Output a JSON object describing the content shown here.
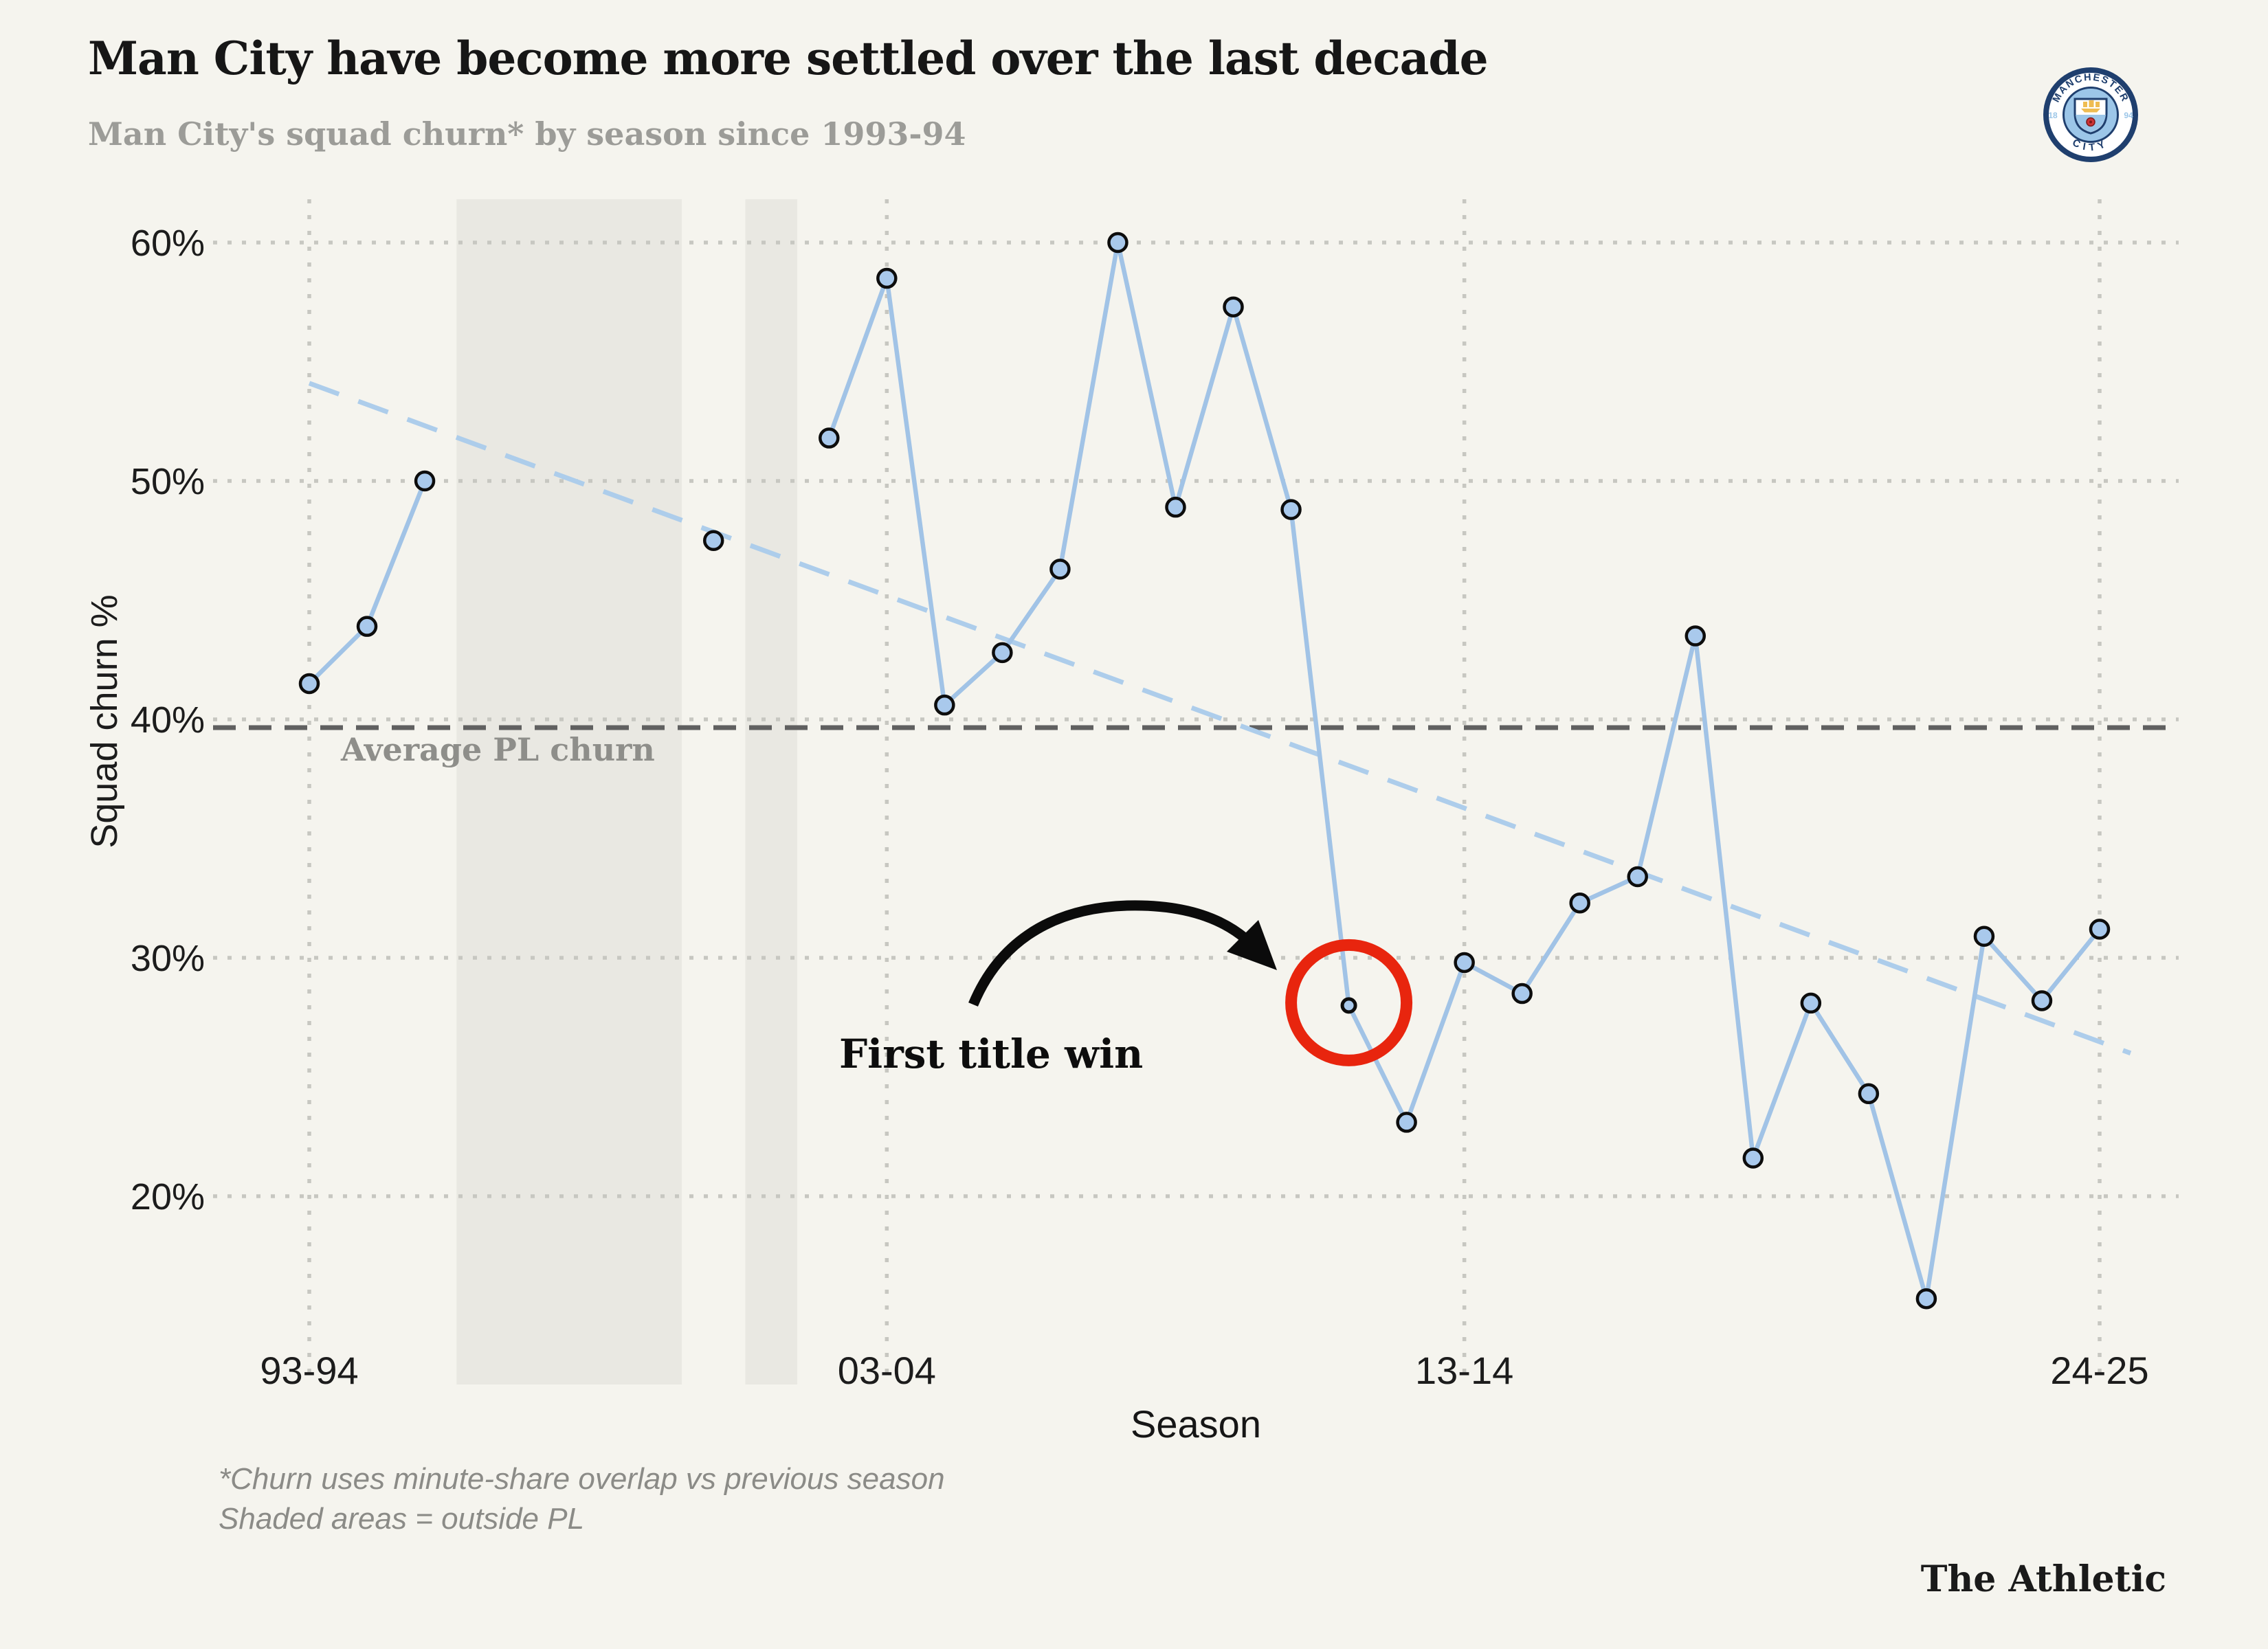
{
  "header": {
    "title": "Man City have become more settled over the last decade",
    "subtitle": "Man City's squad churn* by season since 1993-94"
  },
  "badge": {
    "name": "Manchester City crest",
    "top_text": "MANCHESTER",
    "bottom_text": "CITY",
    "left_text": "18",
    "right_text": "94"
  },
  "chart_data": {
    "type": "line",
    "xlabel": "Season",
    "ylabel": "Squad churn %",
    "ylim": [
      13,
      62
    ],
    "grid": "dotted",
    "legend": "none",
    "seasons": [
      "93-94",
      "94-95",
      "95-96",
      "96-97",
      "97-98",
      "98-99",
      "99-00",
      "00-01",
      "01-02",
      "02-03",
      "03-04",
      "04-05",
      "05-06",
      "06-07",
      "07-08",
      "08-09",
      "09-10",
      "10-11",
      "11-12",
      "12-13",
      "13-14",
      "14-15",
      "15-16",
      "16-17",
      "17-18",
      "18-19",
      "19-20",
      "20-21",
      "21-22",
      "22-23",
      "23-24",
      "24-25"
    ],
    "values": [
      41.5,
      43.9,
      50,
      null,
      null,
      null,
      null,
      47.5,
      null,
      51.8,
      58.5,
      40.6,
      42.8,
      46.3,
      60,
      48.9,
      57.3,
      48.8,
      28,
      23.1,
      29.8,
      28.5,
      32.3,
      33.4,
      43.5,
      21.6,
      28.1,
      24.3,
      15.7,
      30.9,
      28.2,
      31.2
    ],
    "y_ticks": [
      {
        "value": 60,
        "label": "60%"
      },
      {
        "value": 50,
        "label": "50%"
      },
      {
        "value": 40,
        "label": "40%"
      },
      {
        "value": 30,
        "label": "30%"
      },
      {
        "value": 20,
        "label": "20%"
      }
    ],
    "x_ticks": [
      {
        "season": "93-94",
        "label": "93-94"
      },
      {
        "season": "03-04",
        "label": "03-04"
      },
      {
        "season": "13-14",
        "label": "13-14"
      },
      {
        "season": "24-25",
        "label": "24-25"
      }
    ],
    "average_line": {
      "value": 40,
      "label": "Average PL churn",
      "style": "dashed"
    },
    "trend_line": {
      "from_value": 54.1,
      "to_value": 26.0,
      "style": "dashed"
    },
    "shaded_regions": [
      {
        "from_season": "96-97",
        "to_season": "99-00"
      },
      {
        "from_season": "01-02",
        "to_season": "01-02"
      }
    ],
    "annotation": {
      "text": "First title win",
      "season": "11-12",
      "value": 28,
      "highlight": "red-circle"
    }
  },
  "footnote": {
    "line1": "*Churn uses minute-share overlap vs previous season",
    "line2": "Shaded areas = outside PL"
  },
  "credit": "The Athletic",
  "colors": {
    "background": "#f5f4ee",
    "shaded_region": "#e9e8e2",
    "grid": "#c7c7c1",
    "series_line": "#a1c3e6",
    "marker_fill": "#a9c9ec",
    "marker_stroke": "#0d0d0d",
    "trend_line": "#adcdeb",
    "average_line": "#606060",
    "highlight_red": "#e8250e",
    "arrow": "#0b0b0b",
    "title_text": "#161616",
    "subtitle_text": "#9c9c98",
    "footnote_text": "#8b8b87",
    "axis_text": "#1c1c1c",
    "badge_navy": "#1f3f6e",
    "badge_sky": "#9cc6e8",
    "badge_gold": "#eebc52",
    "badge_red": "#cd3436"
  }
}
